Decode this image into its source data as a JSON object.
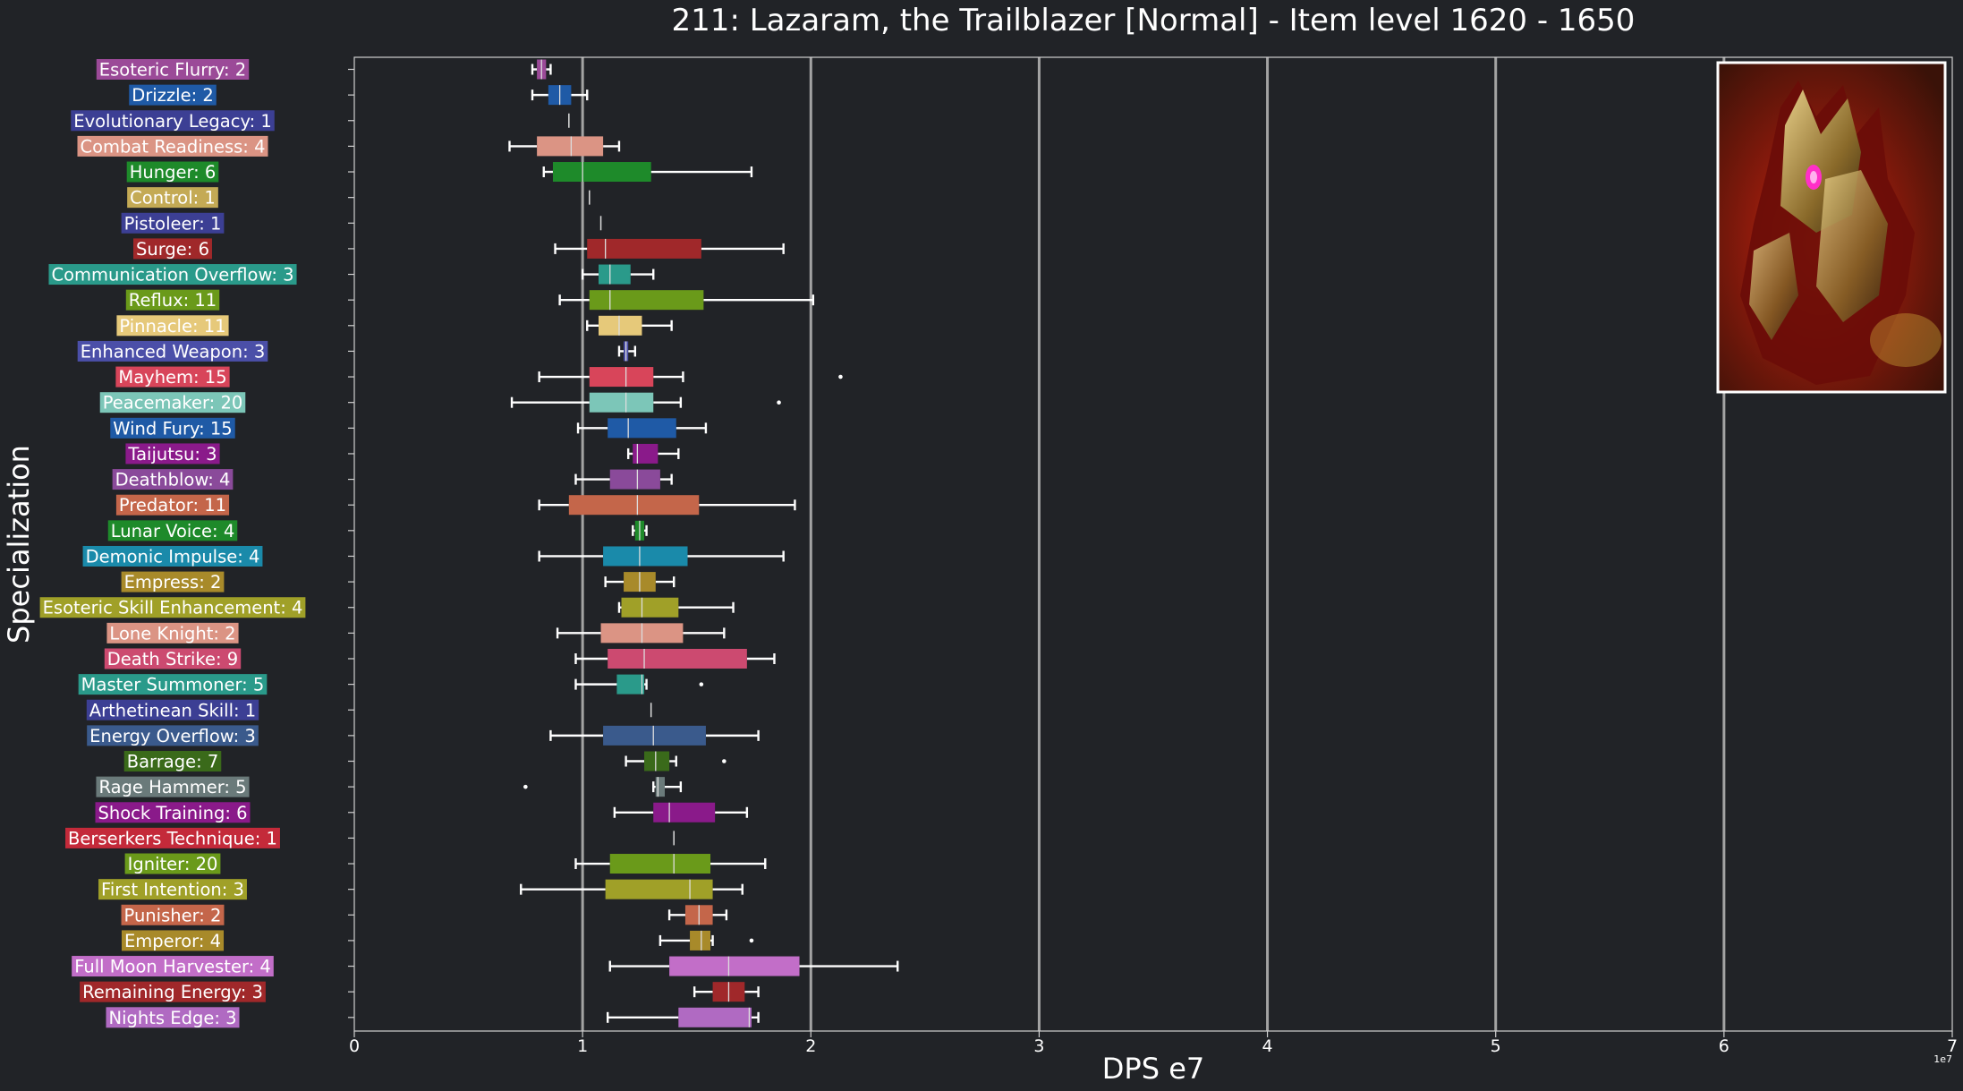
{
  "chart_data": {
    "type": "box",
    "title": "211: Lazaram, the Trailblazer [Normal] - Item level 1620 - 1650",
    "xlabel": "DPS e7",
    "ylabel": "Specialization",
    "x_exponent_label": "1e7",
    "xlim": [
      0,
      7
    ],
    "xticks": [
      "0",
      "1",
      "2",
      "3",
      "4",
      "5",
      "6",
      "7"
    ],
    "grid": "vertical",
    "has_portrait_image": true,
    "categories": [
      {
        "label": "Esoteric Flurry: 2",
        "color": "#9b4a98",
        "whisker_low": 0.78,
        "q1": 0.8,
        "median": 0.82,
        "q3": 0.84,
        "whisker_high": 0.86,
        "outliers": []
      },
      {
        "label": "Drizzle: 2",
        "color": "#1f5aa6",
        "whisker_low": 0.78,
        "q1": 0.85,
        "median": 0.9,
        "q3": 0.95,
        "whisker_high": 1.02,
        "outliers": []
      },
      {
        "label": "Evolutionary Legacy: 1",
        "color": "#3c3f94",
        "whisker_low": 0.94,
        "q1": 0.94,
        "median": 0.94,
        "q3": 0.94,
        "whisker_high": 0.94,
        "outliers": []
      },
      {
        "label": "Combat Readiness: 4",
        "color": "#db9484",
        "whisker_low": 0.68,
        "q1": 0.8,
        "median": 0.95,
        "q3": 1.09,
        "whisker_high": 1.16,
        "outliers": []
      },
      {
        "label": "Hunger: 6",
        "color": "#1e8a2a",
        "whisker_low": 0.83,
        "q1": 0.87,
        "median": 1.0,
        "q3": 1.3,
        "whisker_high": 1.74,
        "outliers": []
      },
      {
        "label": "Control: 1",
        "color": "#c4aa55",
        "whisker_low": 1.03,
        "q1": 1.03,
        "median": 1.03,
        "q3": 1.03,
        "whisker_high": 1.03,
        "outliers": []
      },
      {
        "label": "Pistoleer: 1",
        "color": "#3c3f94",
        "whisker_low": 1.08,
        "q1": 1.08,
        "median": 1.08,
        "q3": 1.08,
        "whisker_high": 1.08,
        "outliers": []
      },
      {
        "label": "Surge: 6",
        "color": "#a0282a",
        "whisker_low": 0.88,
        "q1": 1.02,
        "median": 1.1,
        "q3": 1.52,
        "whisker_high": 1.88,
        "outliers": []
      },
      {
        "label": "Communication Overflow: 3",
        "color": "#2a9a8a",
        "whisker_low": 1.0,
        "q1": 1.07,
        "median": 1.12,
        "q3": 1.21,
        "whisker_high": 1.31,
        "outliers": []
      },
      {
        "label": "Reflux: 11",
        "color": "#6a9a1a",
        "whisker_low": 0.9,
        "q1": 1.03,
        "median": 1.12,
        "q3": 1.53,
        "whisker_high": 2.01,
        "outliers": []
      },
      {
        "label": "Pinnacle: 11",
        "color": "#e6c97a",
        "whisker_low": 1.02,
        "q1": 1.07,
        "median": 1.16,
        "q3": 1.26,
        "whisker_high": 1.39,
        "outliers": []
      },
      {
        "label": "Enhanced Weapon: 3",
        "color": "#4b4fa8",
        "whisker_low": 1.16,
        "q1": 1.18,
        "median": 1.19,
        "q3": 1.2,
        "whisker_high": 1.23,
        "outliers": []
      },
      {
        "label": "Mayhem: 15",
        "color": "#d8455a",
        "whisker_low": 0.81,
        "q1": 1.03,
        "median": 1.19,
        "q3": 1.31,
        "whisker_high": 1.44,
        "outliers": [
          2.13
        ]
      },
      {
        "label": "Peacemaker: 20",
        "color": "#7cc6b8",
        "whisker_low": 0.69,
        "q1": 1.03,
        "median": 1.19,
        "q3": 1.31,
        "whisker_high": 1.43,
        "outliers": [
          1.86
        ]
      },
      {
        "label": "Wind Fury: 15",
        "color": "#1f5aa6",
        "whisker_low": 0.98,
        "q1": 1.11,
        "median": 1.2,
        "q3": 1.41,
        "whisker_high": 1.54,
        "outliers": []
      },
      {
        "label": "Taijutsu: 3",
        "color": "#8a1a8a",
        "whisker_low": 1.2,
        "q1": 1.22,
        "median": 1.24,
        "q3": 1.33,
        "whisker_high": 1.42,
        "outliers": []
      },
      {
        "label": "Deathblow: 4",
        "color": "#8a4a9a",
        "whisker_low": 0.97,
        "q1": 1.12,
        "median": 1.24,
        "q3": 1.34,
        "whisker_high": 1.39,
        "outliers": []
      },
      {
        "label": "Predator: 11",
        "color": "#c4664a",
        "whisker_low": 0.81,
        "q1": 0.94,
        "median": 1.24,
        "q3": 1.51,
        "whisker_high": 1.93,
        "outliers": []
      },
      {
        "label": "Lunar Voice: 4",
        "color": "#1e8a2a",
        "whisker_low": 1.22,
        "q1": 1.23,
        "median": 1.25,
        "q3": 1.27,
        "whisker_high": 1.28,
        "outliers": []
      },
      {
        "label": "Demonic Impulse: 4",
        "color": "#1a8aaa",
        "whisker_low": 0.81,
        "q1": 1.09,
        "median": 1.25,
        "q3": 1.46,
        "whisker_high": 1.88,
        "outliers": []
      },
      {
        "label": "Empress: 2",
        "color": "#a88a2a",
        "whisker_low": 1.1,
        "q1": 1.18,
        "median": 1.25,
        "q3": 1.32,
        "whisker_high": 1.4,
        "outliers": []
      },
      {
        "label": "Esoteric Skill Enhancement: 4",
        "color": "#a0a028",
        "whisker_low": 1.16,
        "q1": 1.17,
        "median": 1.26,
        "q3": 1.42,
        "whisker_high": 1.66,
        "outliers": []
      },
      {
        "label": "Lone Knight: 2",
        "color": "#db9484",
        "whisker_low": 0.89,
        "q1": 1.08,
        "median": 1.26,
        "q3": 1.44,
        "whisker_high": 1.62,
        "outliers": []
      },
      {
        "label": "Death Strike: 9",
        "color": "#cc4a70",
        "whisker_low": 0.97,
        "q1": 1.11,
        "median": 1.27,
        "q3": 1.72,
        "whisker_high": 1.84,
        "outliers": []
      },
      {
        "label": "Master Summoner: 5",
        "color": "#2a9a8a",
        "whisker_low": 0.97,
        "q1": 1.15,
        "median": 1.26,
        "q3": 1.27,
        "whisker_high": 1.28,
        "outliers": [
          1.52
        ]
      },
      {
        "label": "Arthetinean Skill: 1",
        "color": "#3c3f94",
        "whisker_low": 1.3,
        "q1": 1.3,
        "median": 1.3,
        "q3": 1.3,
        "whisker_high": 1.3,
        "outliers": []
      },
      {
        "label": "Energy Overflow: 3",
        "color": "#3a5a8c",
        "whisker_low": 0.86,
        "q1": 1.09,
        "median": 1.31,
        "q3": 1.54,
        "whisker_high": 1.77,
        "outliers": []
      },
      {
        "label": "Barrage: 7",
        "color": "#3a6a1a",
        "whisker_low": 1.19,
        "q1": 1.27,
        "median": 1.32,
        "q3": 1.38,
        "whisker_high": 1.41,
        "outliers": [
          1.62
        ]
      },
      {
        "label": "Rage Hammer: 5",
        "color": "#6a7a7a",
        "whisker_low": 1.31,
        "q1": 1.32,
        "median": 1.33,
        "q3": 1.36,
        "whisker_high": 1.43,
        "outliers": [
          0.75
        ]
      },
      {
        "label": "Shock Training: 6",
        "color": "#8a1a8a",
        "whisker_low": 1.14,
        "q1": 1.31,
        "median": 1.38,
        "q3": 1.58,
        "whisker_high": 1.72,
        "outliers": []
      },
      {
        "label": "Berserkers Technique: 1",
        "color": "#c42a3a",
        "whisker_low": 1.4,
        "q1": 1.4,
        "median": 1.4,
        "q3": 1.4,
        "whisker_high": 1.4,
        "outliers": []
      },
      {
        "label": "Igniter: 20",
        "color": "#6a9a1a",
        "whisker_low": 0.97,
        "q1": 1.12,
        "median": 1.4,
        "q3": 1.56,
        "whisker_high": 1.8,
        "outliers": []
      },
      {
        "label": "First Intention: 3",
        "color": "#a0a028",
        "whisker_low": 0.73,
        "q1": 1.1,
        "median": 1.47,
        "q3": 1.57,
        "whisker_high": 1.7,
        "outliers": []
      },
      {
        "label": "Punisher: 2",
        "color": "#c4664a",
        "whisker_low": 1.38,
        "q1": 1.45,
        "median": 1.51,
        "q3": 1.57,
        "whisker_high": 1.63,
        "outliers": []
      },
      {
        "label": "Emperor: 4",
        "color": "#a88a2a",
        "whisker_low": 1.34,
        "q1": 1.47,
        "median": 1.52,
        "q3": 1.56,
        "whisker_high": 1.57,
        "outliers": [
          1.74
        ]
      },
      {
        "label": "Full Moon Harvester: 4",
        "color": "#c26ec8",
        "whisker_low": 1.12,
        "q1": 1.38,
        "median": 1.64,
        "q3": 1.95,
        "whisker_high": 2.38,
        "outliers": []
      },
      {
        "label": "Remaining Energy: 3",
        "color": "#a0282a",
        "whisker_low": 1.49,
        "q1": 1.57,
        "median": 1.64,
        "q3": 1.71,
        "whisker_high": 1.77,
        "outliers": []
      },
      {
        "label": "Nights Edge: 3",
        "color": "#b06ac2",
        "whisker_low": 1.11,
        "q1": 1.42,
        "median": 1.73,
        "q3": 1.74,
        "whisker_high": 1.77,
        "outliers": []
      }
    ]
  }
}
